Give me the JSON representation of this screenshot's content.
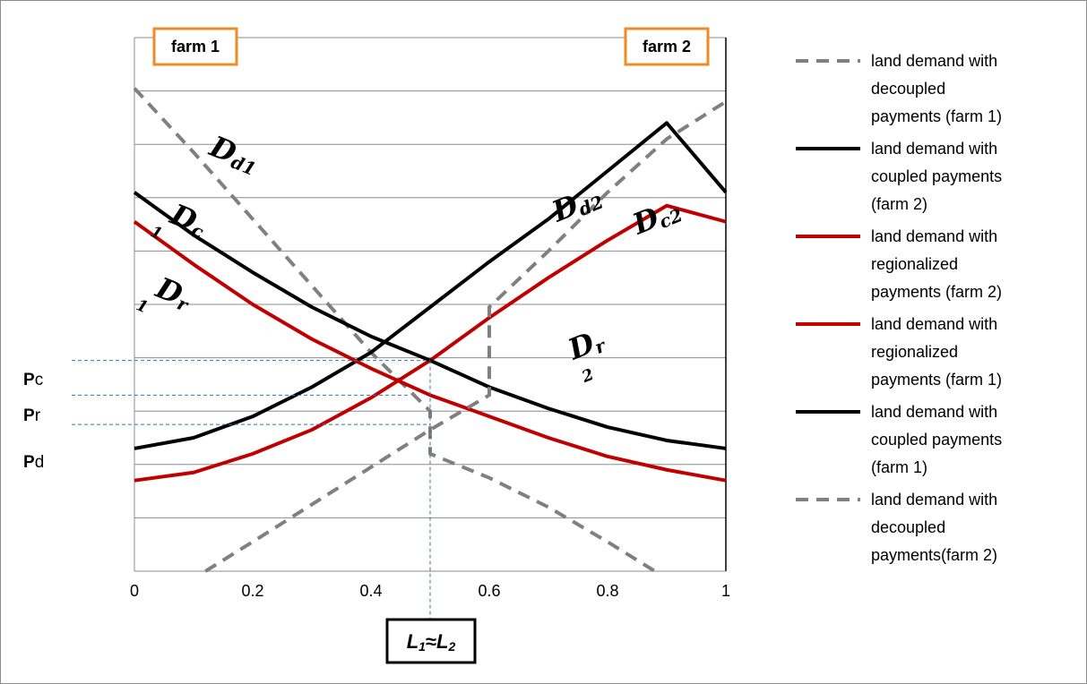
{
  "chart_data": {
    "type": "line",
    "title": "",
    "xlabel": "",
    "ylabel": "",
    "xlim": [
      0,
      1
    ],
    "ylim": [
      0,
      10
    ],
    "x_ticks": [
      "0",
      "0.2",
      "0.4",
      "0.6",
      "0.8",
      "1"
    ],
    "grid": true,
    "legend_position": "right",
    "corner_labels": {
      "left": "farm 1",
      "right": "farm 2"
    },
    "series": [
      {
        "name": "land demand with decoupled payments (farm 1)",
        "color": "#808080",
        "dash": true,
        "label_key": "Dd1",
        "points": [
          [
            0,
            9.05
          ],
          [
            0.1,
            7.85
          ],
          [
            0.2,
            6.6
          ],
          [
            0.3,
            5.35
          ],
          [
            0.4,
            4.1
          ],
          [
            0.5,
            3.0
          ],
          [
            0.5,
            2.2
          ],
          [
            0.6,
            1.75
          ],
          [
            0.7,
            1.2
          ],
          [
            0.8,
            0.55
          ],
          [
            0.88,
            0.0
          ]
        ]
      },
      {
        "name": "land demand with coupled payments (farm 2)",
        "color": "#000000",
        "dash": false,
        "label_key": "Dc2",
        "points": [
          [
            0,
            2.3
          ],
          [
            0.1,
            2.5
          ],
          [
            0.2,
            2.9
          ],
          [
            0.3,
            3.45
          ],
          [
            0.4,
            4.1
          ],
          [
            0.5,
            4.95
          ],
          [
            0.6,
            5.8
          ],
          [
            0.7,
            6.6
          ],
          [
            0.8,
            7.5
          ],
          [
            0.9,
            8.4
          ],
          [
            1,
            7.1
          ]
        ]
      },
      {
        "name": "land demand with regionalized payments (farm 2)",
        "color": "#c00000",
        "dash": false,
        "label_key": "Dr2",
        "points": [
          [
            0,
            1.7
          ],
          [
            0.1,
            1.85
          ],
          [
            0.2,
            2.2
          ],
          [
            0.3,
            2.65
          ],
          [
            0.4,
            3.25
          ],
          [
            0.5,
            3.95
          ],
          [
            0.6,
            4.75
          ],
          [
            0.7,
            5.5
          ],
          [
            0.8,
            6.2
          ],
          [
            0.9,
            6.85
          ],
          [
            1,
            6.55
          ]
        ]
      },
      {
        "name": "land demand with regionalized payments (farm 1)",
        "color": "#c00000",
        "dash": false,
        "label_key": "Dr1",
        "points": [
          [
            0,
            6.55
          ],
          [
            0.1,
            5.75
          ],
          [
            0.2,
            5.0
          ],
          [
            0.3,
            4.35
          ],
          [
            0.4,
            3.8
          ],
          [
            0.5,
            3.3
          ],
          [
            0.6,
            2.9
          ],
          [
            0.7,
            2.5
          ],
          [
            0.8,
            2.15
          ],
          [
            0.9,
            1.9
          ],
          [
            1,
            1.7
          ]
        ]
      },
      {
        "name": "land demand with coupled payments (farm 1)",
        "color": "#000000",
        "dash": false,
        "label_key": "Dc1",
        "points": [
          [
            0,
            7.1
          ],
          [
            0.1,
            6.3
          ],
          [
            0.2,
            5.6
          ],
          [
            0.3,
            4.95
          ],
          [
            0.4,
            4.4
          ],
          [
            0.5,
            3.95
          ],
          [
            0.6,
            3.45
          ],
          [
            0.7,
            3.05
          ],
          [
            0.8,
            2.7
          ],
          [
            0.9,
            2.45
          ],
          [
            1,
            2.3
          ]
        ]
      },
      {
        "name": "land demand with decoupled payments(farm 2)",
        "color": "#808080",
        "dash": true,
        "label_key": "Dd2",
        "points": [
          [
            0.12,
            0.0
          ],
          [
            0.2,
            0.55
          ],
          [
            0.3,
            1.25
          ],
          [
            0.4,
            1.95
          ],
          [
            0.5,
            2.65
          ],
          [
            0.6,
            3.3
          ],
          [
            0.6,
            4.95
          ],
          [
            0.7,
            6.0
          ],
          [
            0.8,
            7.1
          ],
          [
            0.9,
            8.1
          ],
          [
            1,
            8.8
          ]
        ]
      }
    ],
    "price_markers": [
      {
        "prefix": "P",
        "suffix": "c",
        "y": 3.95,
        "x_end": 0.5
      },
      {
        "prefix": "P",
        "suffix": "r",
        "y": 3.3,
        "x_end": 0.465
      },
      {
        "prefix": "P",
        "suffix": "d",
        "y": 2.75,
        "x_end": 0.5
      }
    ],
    "equilibrium_marker": {
      "x": 0.5,
      "label_main1": "L",
      "label_sub1": "1",
      "label_approx": "≈",
      "label_main2": "L",
      "label_sub2": "2"
    },
    "curve_labels": {
      "Dd1": {
        "main": "D",
        "sub": "d1"
      },
      "Dc1": {
        "main": "D",
        "sub": "c",
        "extra": "1"
      },
      "Dr1": {
        "main": "D",
        "sub": "r",
        "extra": "1"
      },
      "Dd2": {
        "main": "D",
        "sub": "d2"
      },
      "Dc2": {
        "main": "D",
        "sub": "c2"
      },
      "Dr2": {
        "main": "D",
        "sub": "r",
        "extra": "2"
      }
    },
    "legend_entries": [
      {
        "series": 0,
        "lines": [
          "land demand with",
          "decoupled",
          "payments (farm 1)"
        ]
      },
      {
        "series": 1,
        "lines": [
          "land demand with",
          "coupled payments",
          "(farm 2)"
        ]
      },
      {
        "series": 2,
        "lines": [
          "land demand with",
          "regionalized",
          "payments (farm 2)"
        ]
      },
      {
        "series": 3,
        "lines": [
          "land demand with",
          "regionalized",
          "payments (farm 1)"
        ]
      },
      {
        "series": 4,
        "lines": [
          "land demand with",
          "coupled payments",
          "(farm 1)"
        ]
      },
      {
        "series": 5,
        "lines": [
          "land demand with",
          "decoupled",
          "payments(farm 2)"
        ]
      }
    ]
  }
}
